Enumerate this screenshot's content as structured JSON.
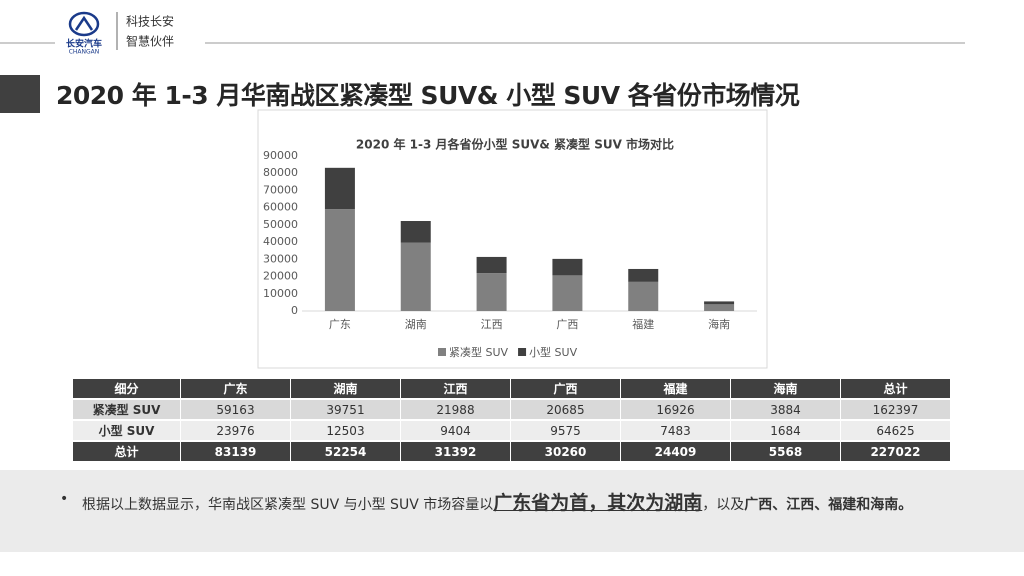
{
  "header": {
    "logo_text": "长安汽车",
    "logo_en": "CHANGAN",
    "slogan": [
      "科技长安",
      "智慧伙伴"
    ]
  },
  "title": "2020 年 1-3 月华南战区紧凑型 SUV& 小型 SUV 各省份市场情况",
  "chart_data": {
    "type": "bar",
    "stacked": true,
    "title": "2020 年 1-3 月各省份小型 SUV& 紧凑型 SUV 市场对比",
    "categories": [
      "广东",
      "湖南",
      "江西",
      "广西",
      "福建",
      "海南"
    ],
    "series": [
      {
        "name": "紧凑型 SUV",
        "color": "#808080",
        "values": [
          59163,
          39751,
          21988,
          20685,
          16926,
          3884
        ]
      },
      {
        "name": "小型 SUV",
        "color": "#404040",
        "values": [
          23976,
          12503,
          9404,
          9575,
          7483,
          1684
        ]
      }
    ],
    "ylim": [
      0,
      90000
    ],
    "yticks": [
      0,
      10000,
      20000,
      30000,
      40000,
      50000,
      60000,
      70000,
      80000,
      90000
    ],
    "legend": "bottom"
  },
  "table": {
    "header": [
      "细分",
      "广东",
      "湖南",
      "江西",
      "广西",
      "福建",
      "海南",
      "总计"
    ],
    "rows": [
      [
        "紧凑型 SUV",
        59163,
        39751,
        21988,
        20685,
        16926,
        3884,
        162397
      ],
      [
        "小型 SUV",
        23976,
        12503,
        9404,
        9575,
        7483,
        1684,
        64625
      ],
      [
        "总计",
        83139,
        52254,
        31392,
        30260,
        24409,
        5568,
        227022
      ]
    ]
  },
  "note": {
    "text": "根据以上数据显示，华南战区紧凑型 SUV 与小型 SUV 市场容量以",
    "emphasis": "广东省为首，其次为湖南",
    "mid": "，以及",
    "tail": "广西、江西、福建和海南。"
  }
}
